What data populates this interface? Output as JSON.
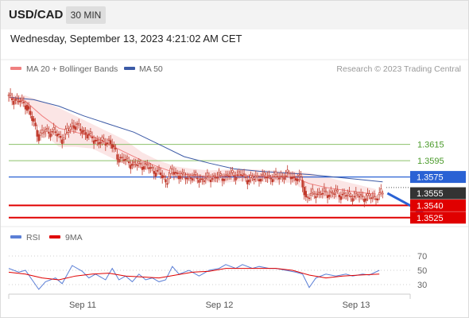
{
  "header": {
    "symbol": "USD/CAD",
    "timeframe": "30 MIN"
  },
  "timestamp": "Wednesday, September 13, 2023 4:21:02 AM CET",
  "copyright": "Research © 2023 Trading Central",
  "colors": {
    "ma20": "#f08080",
    "ma50": "#3c5aa6",
    "band_fill": "#fbe2e2",
    "candle": "#c0392b",
    "support": "#e00000",
    "pivot": "#2a62d4",
    "resistance": "#8cc06a",
    "current": "#333333",
    "rsi": "#5b7fd6",
    "rsi_ma": "#e00000"
  },
  "chart_data": [
    {
      "type": "candlestick",
      "title": "",
      "x_ticks": [
        "Sep 11",
        "Sep 12",
        "Sep 13"
      ],
      "legend": [
        "MA 20 + Bollinger Bands",
        "MA 50"
      ],
      "ylim": [
        1.3515,
        1.3685
      ],
      "current_price": "1.3555",
      "levels": [
        {
          "label": "1.3615",
          "value": 1.3615,
          "type": "resistance"
        },
        {
          "label": "1.3595",
          "value": 1.3595,
          "type": "resistance"
        },
        {
          "label": "1.3575",
          "value": 1.3575,
          "type": "pivot"
        },
        {
          "label": "1.3540",
          "value": 1.354,
          "type": "support"
        },
        {
          "label": "1.3525",
          "value": 1.3525,
          "type": "support"
        }
      ],
      "close_path": [
        [
          0,
          1.3673
        ],
        [
          6,
          1.3668
        ],
        [
          10,
          1.3665
        ],
        [
          15,
          1.364
        ],
        [
          18,
          1.3625
        ],
        [
          22,
          1.3632
        ],
        [
          27,
          1.363
        ],
        [
          32,
          1.3622
        ],
        [
          38,
          1.364
        ],
        [
          44,
          1.3632
        ],
        [
          50,
          1.3622
        ],
        [
          55,
          1.3617
        ],
        [
          60,
          1.362
        ],
        [
          65,
          1.36
        ],
        [
          70,
          1.3595
        ],
        [
          75,
          1.359
        ],
        [
          80,
          1.359
        ],
        [
          85,
          1.3585
        ],
        [
          90,
          1.358
        ],
        [
          94,
          1.357
        ],
        [
          98,
          1.3582
        ],
        [
          104,
          1.3575
        ],
        [
          110,
          1.3575
        ],
        [
          116,
          1.3572
        ],
        [
          122,
          1.3575
        ],
        [
          128,
          1.3575
        ],
        [
          133,
          1.3578
        ],
        [
          138,
          1.3578
        ],
        [
          144,
          1.3572
        ],
        [
          150,
          1.3575
        ],
        [
          156,
          1.3575
        ],
        [
          162,
          1.3575
        ],
        [
          166,
          1.3578
        ],
        [
          170,
          1.3575
        ],
        [
          175,
          1.3572
        ],
        [
          178,
          1.355
        ],
        [
          184,
          1.3555
        ],
        [
          190,
          1.3555
        ],
        [
          196,
          1.3555
        ],
        [
          202,
          1.3552
        ],
        [
          208,
          1.3552
        ],
        [
          214,
          1.355
        ],
        [
          219,
          1.355
        ],
        [
          224,
          1.3555
        ]
      ],
      "ma20_path": [
        [
          0,
          1.3673
        ],
        [
          10,
          1.3668
        ],
        [
          20,
          1.365
        ],
        [
          30,
          1.3635
        ],
        [
          40,
          1.363
        ],
        [
          50,
          1.3625
        ],
        [
          60,
          1.3615
        ],
        [
          70,
          1.3605
        ],
        [
          80,
          1.3595
        ],
        [
          90,
          1.3587
        ],
        [
          100,
          1.358
        ],
        [
          110,
          1.3577
        ],
        [
          120,
          1.3575
        ],
        [
          130,
          1.3576
        ],
        [
          140,
          1.3577
        ],
        [
          150,
          1.3576
        ],
        [
          160,
          1.3575
        ],
        [
          170,
          1.3575
        ],
        [
          180,
          1.3567
        ],
        [
          190,
          1.3562
        ],
        [
          200,
          1.3559
        ],
        [
          210,
          1.3556
        ],
        [
          220,
          1.3554
        ]
      ],
      "band_upper": [
        [
          0,
          1.3677
        ],
        [
          10,
          1.3675
        ],
        [
          20,
          1.3668
        ],
        [
          30,
          1.366
        ],
        [
          40,
          1.365
        ],
        [
          50,
          1.364
        ],
        [
          60,
          1.363
        ],
        [
          70,
          1.362
        ],
        [
          80,
          1.3605
        ],
        [
          90,
          1.3595
        ],
        [
          100,
          1.3588
        ],
        [
          110,
          1.3585
        ],
        [
          120,
          1.3583
        ],
        [
          130,
          1.3584
        ],
        [
          140,
          1.3585
        ],
        [
          150,
          1.3584
        ],
        [
          160,
          1.3583
        ],
        [
          170,
          1.3582
        ],
        [
          180,
          1.358
        ],
        [
          190,
          1.3575
        ],
        [
          200,
          1.357
        ],
        [
          210,
          1.3565
        ],
        [
          220,
          1.356
        ]
      ],
      "band_lower": [
        [
          0,
          1.3668
        ],
        [
          10,
          1.366
        ],
        [
          20,
          1.363
        ],
        [
          30,
          1.3612
        ],
        [
          40,
          1.3612
        ],
        [
          50,
          1.361
        ],
        [
          60,
          1.36
        ],
        [
          70,
          1.359
        ],
        [
          80,
          1.3585
        ],
        [
          90,
          1.3578
        ],
        [
          100,
          1.3572
        ],
        [
          110,
          1.3569
        ],
        [
          120,
          1.3568
        ],
        [
          130,
          1.3568
        ],
        [
          140,
          1.357
        ],
        [
          150,
          1.3569
        ],
        [
          160,
          1.3568
        ],
        [
          170,
          1.3568
        ],
        [
          180,
          1.3555
        ],
        [
          190,
          1.3548
        ],
        [
          200,
          1.3547
        ],
        [
          210,
          1.3546
        ],
        [
          220,
          1.3547
        ]
      ],
      "ma50_path": [
        [
          0,
          1.3673
        ],
        [
          15,
          1.367
        ],
        [
          30,
          1.3662
        ],
        [
          45,
          1.365
        ],
        [
          60,
          1.364
        ],
        [
          75,
          1.363
        ],
        [
          90,
          1.3615
        ],
        [
          105,
          1.36
        ],
        [
          120,
          1.3592
        ],
        [
          135,
          1.3585
        ],
        [
          150,
          1.3582
        ],
        [
          165,
          1.358
        ],
        [
          180,
          1.3578
        ],
        [
          195,
          1.3575
        ],
        [
          210,
          1.3572
        ],
        [
          224,
          1.3569
        ]
      ],
      "forecast_arrow": {
        "from": [
          224,
          1.3555
        ],
        "to": [
          244,
          1.353
        ]
      }
    },
    {
      "type": "line",
      "title": "",
      "legend": [
        "RSI",
        "9MA"
      ],
      "y_ticks": [
        "70",
        "50",
        "30"
      ],
      "ylim": [
        20,
        80
      ],
      "rsi_path": [
        [
          0,
          52
        ],
        [
          6,
          48
        ],
        [
          10,
          50
        ],
        [
          14,
          40
        ],
        [
          18,
          30
        ],
        [
          22,
          38
        ],
        [
          28,
          42
        ],
        [
          32,
          36
        ],
        [
          38,
          55
        ],
        [
          44,
          49
        ],
        [
          48,
          42
        ],
        [
          52,
          46
        ],
        [
          58,
          40
        ],
        [
          62,
          52
        ],
        [
          66,
          40
        ],
        [
          70,
          44
        ],
        [
          74,
          38
        ],
        [
          78,
          46
        ],
        [
          82,
          40
        ],
        [
          86,
          42
        ],
        [
          90,
          38
        ],
        [
          94,
          40
        ],
        [
          98,
          54
        ],
        [
          102,
          46
        ],
        [
          108,
          50
        ],
        [
          114,
          44
        ],
        [
          120,
          50
        ],
        [
          126,
          52
        ],
        [
          130,
          56
        ],
        [
          136,
          52
        ],
        [
          140,
          56
        ],
        [
          146,
          52
        ],
        [
          150,
          54
        ],
        [
          156,
          52
        ],
        [
          160,
          52
        ],
        [
          166,
          50
        ],
        [
          172,
          48
        ],
        [
          176,
          46
        ],
        [
          180,
          32
        ],
        [
          184,
          42
        ],
        [
          190,
          46
        ],
        [
          196,
          44
        ],
        [
          202,
          46
        ],
        [
          206,
          44
        ],
        [
          212,
          46
        ],
        [
          216,
          45
        ],
        [
          222,
          50
        ]
      ],
      "ma_path": [
        [
          0,
          48
        ],
        [
          10,
          46
        ],
        [
          20,
          42
        ],
        [
          30,
          40
        ],
        [
          40,
          44
        ],
        [
          50,
          46
        ],
        [
          60,
          47
        ],
        [
          70,
          44
        ],
        [
          80,
          43
        ],
        [
          90,
          42
        ],
        [
          100,
          45
        ],
        [
          110,
          48
        ],
        [
          120,
          49
        ],
        [
          130,
          52
        ],
        [
          140,
          52
        ],
        [
          150,
          52
        ],
        [
          160,
          52
        ],
        [
          170,
          50
        ],
        [
          180,
          45
        ],
        [
          190,
          42
        ],
        [
          200,
          44
        ],
        [
          210,
          45
        ],
        [
          222,
          46
        ]
      ]
    }
  ]
}
